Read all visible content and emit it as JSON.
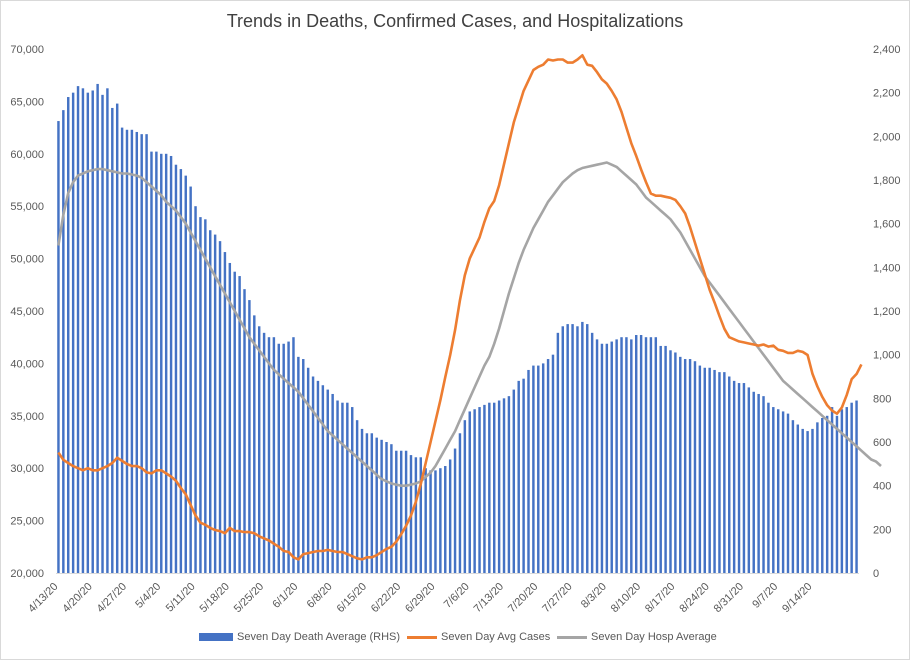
{
  "chart_data": {
    "type": "bar+line",
    "title": "Trends in Deaths, Confirmed Cases, and Hospitalizations",
    "xlabel": "",
    "ylabel_left": "",
    "ylabel_right": "",
    "y_left": {
      "ylim": [
        20000,
        70000
      ],
      "ticks": [
        "20,000",
        "25,000",
        "30,000",
        "35,000",
        "40,000",
        "45,000",
        "50,000",
        "55,000",
        "60,000",
        "65,000",
        "70,000"
      ]
    },
    "y_right": {
      "ylim": [
        0,
        2400
      ],
      "ticks": [
        "0",
        "200",
        "400",
        "600",
        "800",
        "1,000",
        "1,200",
        "1,400",
        "1,600",
        "1,800",
        "2,000",
        "2,200",
        "2,400"
      ]
    },
    "x_start_date": "2020-04-13",
    "x_tick_labels": [
      "4/13/20",
      "4/20/20",
      "4/27/20",
      "5/4/20",
      "5/11/20",
      "5/18/20",
      "5/25/20",
      "6/1/20",
      "6/8/20",
      "6/15/20",
      "6/22/20",
      "6/29/20",
      "7/6/20",
      "7/13/20",
      "7/20/20",
      "7/27/20",
      "8/3/20",
      "8/10/20",
      "8/17/20",
      "8/24/20",
      "8/31/20",
      "9/7/20",
      "9/14/20"
    ],
    "grid": false,
    "legend_position": "bottom",
    "series": [
      {
        "name": "Seven Day Death Average (RHS)",
        "kind": "bar",
        "axis": "right",
        "color": "#4472C4",
        "values": [
          2070,
          2120,
          2180,
          2200,
          2230,
          2220,
          2200,
          2210,
          2240,
          2190,
          2220,
          2130,
          2150,
          2040,
          2030,
          2030,
          2020,
          2010,
          2010,
          1930,
          1930,
          1920,
          1920,
          1910,
          1870,
          1850,
          1820,
          1770,
          1680,
          1630,
          1620,
          1570,
          1550,
          1520,
          1470,
          1420,
          1380,
          1360,
          1300,
          1250,
          1180,
          1130,
          1100,
          1080,
          1080,
          1050,
          1050,
          1060,
          1080,
          990,
          980,
          940,
          900,
          880,
          860,
          840,
          820,
          790,
          780,
          780,
          760,
          700,
          660,
          640,
          640,
          620,
          610,
          600,
          590,
          560,
          560,
          560,
          540,
          530,
          530,
          480,
          470,
          470,
          480,
          490,
          520,
          570,
          640,
          700,
          740,
          750,
          760,
          770,
          780,
          780,
          790,
          800,
          810,
          840,
          880,
          890,
          930,
          950,
          950,
          960,
          980,
          1000,
          1100,
          1130,
          1140,
          1140,
          1130,
          1150,
          1140,
          1100,
          1070,
          1050,
          1050,
          1060,
          1070,
          1080,
          1080,
          1070,
          1090,
          1090,
          1080,
          1080,
          1080,
          1040,
          1040,
          1020,
          1010,
          990,
          980,
          980,
          970,
          950,
          940,
          940,
          930,
          920,
          920,
          900,
          880,
          870,
          870,
          850,
          830,
          820,
          810,
          780,
          760,
          750,
          740,
          730,
          700,
          680,
          660,
          650,
          660,
          690,
          710,
          720,
          760,
          720,
          750,
          760,
          780,
          790
        ]
      },
      {
        "name": "Seven Day Avg Cases",
        "kind": "line",
        "axis": "left",
        "color": "#ED7D31",
        "values": [
          31500,
          30800,
          30500,
          30200,
          30000,
          29800,
          30000,
          29800,
          29800,
          30000,
          30200,
          30500,
          31000,
          30700,
          30400,
          30200,
          30200,
          30000,
          29600,
          29500,
          29800,
          29800,
          29500,
          29200,
          28800,
          28100,
          27500,
          26500,
          25500,
          24800,
          24600,
          24300,
          24100,
          24000,
          23800,
          24300,
          24000,
          24000,
          23900,
          23900,
          23800,
          23500,
          23300,
          23100,
          22800,
          22500,
          22100,
          22000,
          21500,
          21300,
          21800,
          21900,
          22000,
          22100,
          22100,
          22200,
          22100,
          22000,
          22000,
          21800,
          21600,
          21400,
          21300,
          21500,
          21500,
          21700,
          22000,
          22300,
          22500,
          23000,
          23700,
          24500,
          25500,
          26800,
          28500,
          30500,
          32500,
          34500,
          36500,
          38700,
          40800,
          43200,
          46000,
          48400,
          50000,
          51000,
          52000,
          53500,
          54800,
          55500,
          57000,
          59000,
          61000,
          63000,
          64500,
          66000,
          67000,
          68000,
          68300,
          68500,
          69000,
          68900,
          69000,
          69000,
          68700,
          68700,
          69000,
          69400,
          68500,
          68400,
          67800,
          67100,
          66700,
          66000,
          65200,
          64000,
          62500,
          61000,
          59800,
          58500,
          57300,
          56200,
          56000,
          56000,
          55900,
          55800,
          55600,
          55000,
          54300,
          53000,
          51500,
          50000,
          48500,
          47000,
          45800,
          44500,
          43300,
          42500,
          42300,
          42100,
          42000,
          41900,
          41800,
          41700,
          41800,
          41600,
          41700,
          41300,
          41200,
          41000,
          41000,
          41200,
          41100,
          40800,
          39000,
          37800,
          36800,
          36000,
          35500,
          35200,
          35800,
          37000,
          38500,
          39000,
          39900
        ]
      },
      {
        "name": "Seven Day Hosp Average",
        "kind": "line",
        "axis": "right",
        "color": "#A5A5A5",
        "values": [
          1500,
          1640,
          1740,
          1790,
          1820,
          1830,
          1840,
          1845,
          1850,
          1850,
          1845,
          1840,
          1835,
          1830,
          1830,
          1825,
          1820,
          1810,
          1790,
          1770,
          1750,
          1730,
          1700,
          1680,
          1660,
          1630,
          1600,
          1560,
          1520,
          1480,
          1440,
          1400,
          1360,
          1320,
          1280,
          1240,
          1200,
          1160,
          1120,
          1080,
          1050,
          1020,
          990,
          960,
          930,
          910,
          890,
          870,
          850,
          830,
          800,
          770,
          740,
          710,
          680,
          650,
          630,
          610,
          590,
          570,
          550,
          530,
          510,
          490,
          470,
          450,
          430,
          420,
          410,
          405,
          400,
          400,
          405,
          410,
          420,
          440,
          460,
          490,
          530,
          570,
          610,
          650,
          700,
          750,
          800,
          850,
          900,
          950,
          990,
          1050,
          1120,
          1200,
          1280,
          1350,
          1420,
          1480,
          1530,
          1580,
          1620,
          1660,
          1700,
          1730,
          1760,
          1790,
          1810,
          1830,
          1845,
          1855,
          1860,
          1865,
          1870,
          1875,
          1880,
          1870,
          1860,
          1840,
          1820,
          1800,
          1780,
          1750,
          1720,
          1700,
          1680,
          1660,
          1640,
          1620,
          1590,
          1560,
          1520,
          1480,
          1440,
          1400,
          1360,
          1330,
          1300,
          1270,
          1240,
          1210,
          1180,
          1150,
          1120,
          1090,
          1060,
          1030,
          1000,
          970,
          940,
          910,
          880,
          860,
          840,
          820,
          800,
          780,
          760,
          740,
          720,
          700,
          680,
          660,
          640,
          620,
          600,
          580,
          560,
          540,
          520,
          510,
          490
        ]
      }
    ]
  }
}
